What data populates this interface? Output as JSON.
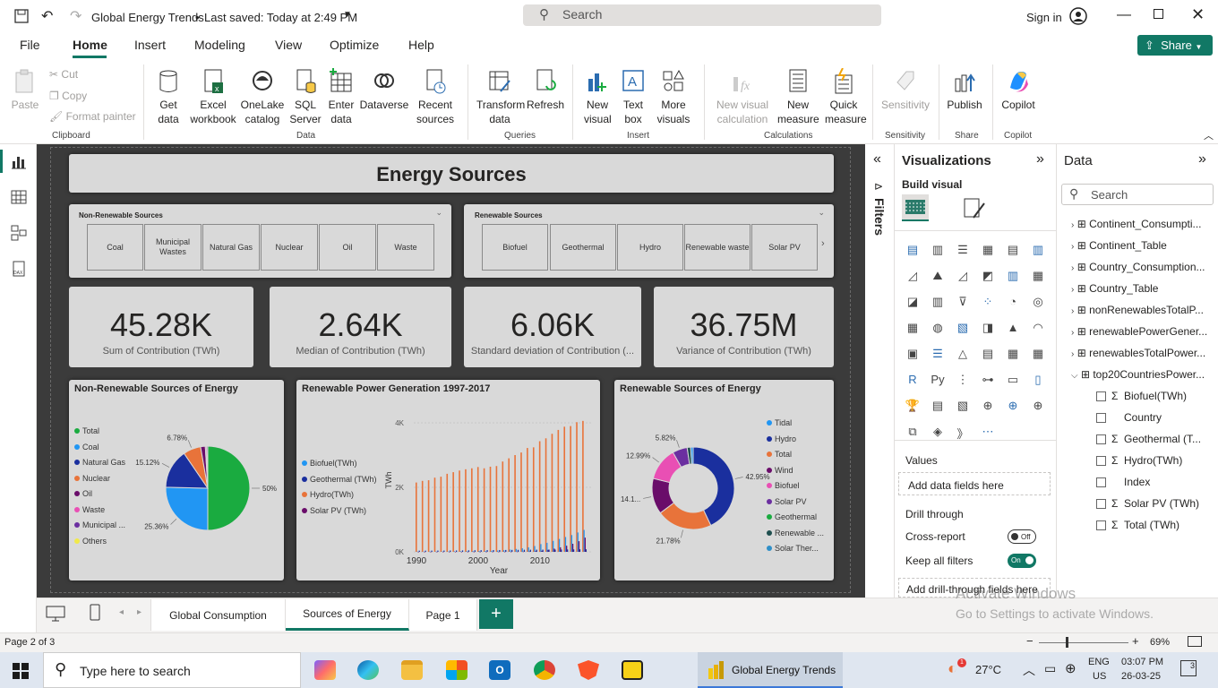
{
  "app": {
    "title": "Global Energy Trends",
    "saved": "Last saved: Today at 2:49 PM",
    "sign_in": "Sign in"
  },
  "search": {
    "placeholder": "Search"
  },
  "ribbon_tabs": [
    "File",
    "Home",
    "Insert",
    "Modeling",
    "View",
    "Optimize",
    "Help"
  ],
  "share_label": "Share",
  "ribbon": {
    "paste": "Paste",
    "cut": "Cut",
    "copy": "Copy",
    "format_painter": "Format painter",
    "get_data": "Get data",
    "excel": "Excel workbook",
    "onelake": "OneLake catalog",
    "sql": "SQL Server",
    "enter_data": "Enter data",
    "dataverse": "Dataverse",
    "recent": "Recent sources",
    "transform": "Transform data",
    "refresh": "Refresh",
    "new_visual": "New visual",
    "text_box": "Text box",
    "more_visuals": "More visuals",
    "new_visual_calc": "New visual calculation",
    "new_measure": "New measure",
    "quick_measure": "Quick measure",
    "sensitivity": "Sensitivity",
    "publish": "Publish",
    "copilot": "Copilot",
    "groups": {
      "clipboard": "Clipboard",
      "data": "Data",
      "queries": "Queries",
      "insert": "Insert",
      "calculations": "Calculations",
      "sensitivity": "Sensitivity",
      "share": "Share",
      "copilot": "Copilot"
    }
  },
  "report": {
    "title": "Energy Sources",
    "nonrenew_slicer": {
      "title": "Non-Renewable Sources",
      "items": [
        "Coal",
        "Municipal Wastes",
        "Natural Gas",
        "Nuclear",
        "Oil",
        "Waste"
      ]
    },
    "renew_slicer": {
      "title": "Renewable Sources",
      "items": [
        "Biofuel",
        "Geothermal",
        "Hydro",
        "Renewable waste",
        "Solar PV"
      ]
    },
    "kpis": [
      {
        "value": "45.28K",
        "label": "Sum of Contribution (TWh)"
      },
      {
        "value": "2.64K",
        "label": "Median of Contribution (TWh)"
      },
      {
        "value": "6.06K",
        "label": "Standard deviation of Contribution (..."
      },
      {
        "value": "36.75M",
        "label": "Variance of Contribution (TWh)"
      }
    ]
  },
  "chart_data": [
    {
      "type": "pie",
      "title": "Non-Renewable Sources of Energy",
      "legend": [
        "Total",
        "Coal",
        "Natural Gas",
        "Nuclear",
        "Oil",
        "Waste",
        "Municipal ...",
        "Others"
      ],
      "colors": [
        "#1aab40",
        "#2196f3",
        "#1a2f9e",
        "#e8733a",
        "#6a0d6a",
        "#e94fb4",
        "#6b2fa0",
        "#f1e94a"
      ],
      "slices": [
        {
          "name": "Total",
          "value": 50,
          "label": "50%"
        },
        {
          "name": "Coal",
          "value": 25.36,
          "label": "25.36%"
        },
        {
          "name": "Natural Gas",
          "value": 15.12,
          "label": "15.12%"
        },
        {
          "name": "Nuclear",
          "value": 6.78,
          "label": "6.78%"
        },
        {
          "name": "Oil",
          "value": 1.8,
          "label": ""
        },
        {
          "name": "Waste",
          "value": 0.5,
          "label": ""
        },
        {
          "name": "Municipal ...",
          "value": 0.44,
          "label": ""
        }
      ]
    },
    {
      "type": "bar",
      "title": "Renewable Power Generation 1997-2017",
      "xlabel": "Year",
      "ylabel": "TWh",
      "yticks": [
        "0K",
        "2K",
        "4K"
      ],
      "ylim": [
        0,
        4500
      ],
      "xticks": [
        "1990",
        "2000",
        "2010"
      ],
      "legend": [
        "Biofuel(TWh)",
        "Geothermal (TWh)",
        "Hydro(TWh)",
        "Solar PV (TWh)"
      ],
      "colors": [
        "#2196f3",
        "#1a2f9e",
        "#e8733a",
        "#6a0d6a"
      ],
      "categories": [
        1990,
        1991,
        1992,
        1993,
        1994,
        1995,
        1996,
        1997,
        1998,
        1999,
        2000,
        2001,
        2002,
        2003,
        2004,
        2005,
        2006,
        2007,
        2008,
        2009,
        2010,
        2011,
        2012,
        2013,
        2014,
        2015,
        2016,
        2017
      ],
      "series": [
        {
          "name": "Hydro(TWh)",
          "values": [
            2150,
            2200,
            2220,
            2300,
            2330,
            2420,
            2470,
            2520,
            2560,
            2590,
            2630,
            2590,
            2640,
            2660,
            2800,
            2900,
            3000,
            3080,
            3220,
            3240,
            3430,
            3520,
            3660,
            3780,
            3880,
            3900,
            4020,
            4060
          ]
        },
        {
          "name": "Biofuel(TWh)",
          "values": [
            10,
            10,
            12,
            12,
            14,
            16,
            18,
            20,
            22,
            24,
            26,
            30,
            34,
            40,
            50,
            70,
            90,
            110,
            140,
            180,
            240,
            280,
            340,
            400,
            460,
            520,
            600,
            680
          ]
        },
        {
          "name": "Solar PV (TWh)",
          "values": [
            0,
            0,
            0,
            0,
            0,
            0,
            0,
            0,
            0,
            0,
            0,
            1,
            1,
            1,
            2,
            3,
            5,
            7,
            12,
            20,
            32,
            63,
            100,
            140,
            190,
            250,
            330,
            440
          ]
        },
        {
          "name": "Geothermal (TWh)",
          "values": [
            36,
            37,
            38,
            39,
            40,
            41,
            42,
            44,
            46,
            48,
            52,
            53,
            54,
            56,
            58,
            60,
            62,
            64,
            66,
            67,
            68,
            69,
            70,
            72,
            74,
            76,
            78,
            80
          ]
        }
      ]
    },
    {
      "type": "pie",
      "title": "Renewable Sources of Energy",
      "legend": [
        "Tidal",
        "Hydro",
        "Total",
        "Wind",
        "Biofuel",
        "Solar PV",
        "Geothermal",
        "Renewable ...",
        "Solar Ther..."
      ],
      "colors": [
        "#2196f3",
        "#1a2f9e",
        "#e8733a",
        "#6a0d6a",
        "#e94fb4",
        "#6b2fa0",
        "#1aab40",
        "#1f4f4f",
        "#2f8fc8"
      ],
      "slices": [
        {
          "name": "Hydro",
          "value": 42.95,
          "label": "42.95%"
        },
        {
          "name": "Total",
          "value": 21.78,
          "label": "21.78%"
        },
        {
          "name": "Wind",
          "value": 14.1,
          "label": "14.1..."
        },
        {
          "name": "Biofuel",
          "value": 12.99,
          "label": "12.99%"
        },
        {
          "name": "Solar PV",
          "value": 5.82,
          "label": "5.82%"
        },
        {
          "name": "Renewable ...",
          "value": 1.4,
          "label": ""
        },
        {
          "name": "Tidal",
          "value": 0.96,
          "label": ""
        }
      ]
    }
  ],
  "filters_label": "Filters",
  "viz_pane": {
    "title": "Visualizations",
    "build": "Build visual",
    "values": "Values",
    "add_data": "Add data fields here",
    "drill": "Drill through",
    "cross": "Cross-report",
    "off": "Off",
    "keep": "Keep all filters",
    "on": "On",
    "add_drill": "Add drill-through fields here"
  },
  "data_pane": {
    "title": "Data",
    "search": "Search",
    "tables": [
      "Continent_Consumpti...",
      "Continent_Table",
      "Country_Consumption...",
      "Country_Table",
      "nonRenewablesTotalP...",
      "renewablePowerGener...",
      "renewablesTotalPower...",
      "top20CountriesPower..."
    ],
    "fields": [
      {
        "sigma": "Σ",
        "name": "Biofuel(TWh)"
      },
      {
        "sigma": "",
        "name": "Country"
      },
      {
        "sigma": "Σ",
        "name": "Geothermal (T..."
      },
      {
        "sigma": "Σ",
        "name": "Hydro(TWh)"
      },
      {
        "sigma": "",
        "name": "Index"
      },
      {
        "sigma": "Σ",
        "name": "Solar PV (TWh)"
      },
      {
        "sigma": "Σ",
        "name": "Total (TWh)"
      }
    ]
  },
  "page_tabs": [
    "Global Consumption",
    "Sources of Energy",
    "Page 1"
  ],
  "status": {
    "page": "Page 2 of 3",
    "zoom": "69%"
  },
  "watermark": {
    "line1": "Activate Windows",
    "line2": "Go to Settings to activate Windows."
  },
  "taskbar": {
    "search": "Type here to search",
    "active_app": "Global Energy Trends",
    "temp": "27°C",
    "lang1": "ENG",
    "lang2": "US",
    "time": "03:07 PM",
    "date": "26-03-25",
    "notif": "3",
    "weather_badge": "1"
  }
}
